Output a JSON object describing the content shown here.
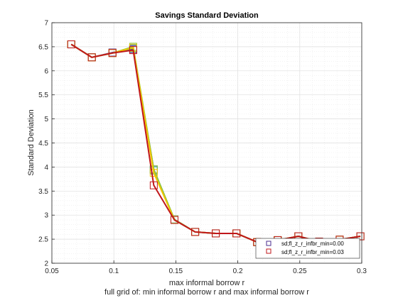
{
  "chart_data": {
    "type": "line",
    "title": "Savings Standard Deviation",
    "xlabel": "max informal borrow r",
    "ylabel": "Standard Deviation",
    "caption": "full grid of: min informal borrow r and max informal borrow r",
    "xlim": [
      0.05,
      0.3
    ],
    "ylim": [
      2,
      7
    ],
    "x_ticks": [
      0.05,
      0.1,
      0.15,
      0.2,
      0.25,
      0.3
    ],
    "x_tick_labels": [
      "0.05",
      "0.1",
      "0.15",
      "0.2",
      "0.25",
      "0.3"
    ],
    "y_ticks": [
      2,
      2.5,
      3,
      3.5,
      4,
      4.5,
      5,
      5.5,
      6,
      6.5,
      7
    ],
    "y_tick_labels": [
      "2",
      "2.5",
      "3",
      "3.5",
      "4",
      "4.5",
      "5",
      "5.5",
      "6",
      "6.5",
      "7"
    ],
    "grid": true,
    "legend_position": "bottom-right",
    "x": [
      0.0656,
      0.0822,
      0.0989,
      0.1156,
      0.1322,
      0.1489,
      0.1656,
      0.1822,
      0.1989,
      0.2156,
      0.2322,
      0.2489,
      0.2656,
      0.2822,
      0.2989
    ],
    "series": [
      {
        "name": "sd;fl_z_r_infbr_min=0.00",
        "color": "#4b2c8f",
        "values": [
          6.55,
          6.28,
          6.38,
          6.45,
          3.95,
          2.9,
          2.65,
          2.62,
          2.62,
          2.44,
          2.48,
          2.56,
          2.45,
          2.49,
          2.56
        ]
      },
      {
        "name": "",
        "color": "#2aa1a1",
        "values": [
          6.55,
          6.28,
          6.37,
          6.47,
          3.93,
          2.91,
          2.65,
          2.62,
          2.62,
          2.44,
          2.48,
          2.56,
          2.45,
          2.49,
          2.56
        ]
      },
      {
        "name": "",
        "color": "#8cc63e",
        "values": [
          6.55,
          6.28,
          6.37,
          6.5,
          3.95,
          2.91,
          2.65,
          2.62,
          2.62,
          2.44,
          2.48,
          2.56,
          2.45,
          2.49,
          2.56
        ]
      },
      {
        "name": "",
        "color": "#f2c500",
        "values": [
          6.55,
          6.28,
          6.37,
          6.48,
          3.88,
          2.9,
          2.65,
          2.62,
          2.62,
          2.44,
          2.48,
          2.56,
          2.45,
          2.49,
          2.56
        ]
      },
      {
        "name": "sd;fl_z_r_infbr_min=0.03",
        "color": "#c0171b",
        "values": [
          6.55,
          6.28,
          6.37,
          6.43,
          3.62,
          2.9,
          2.65,
          2.62,
          2.62,
          2.44,
          2.48,
          2.56,
          2.45,
          2.49,
          2.56
        ]
      }
    ],
    "legend_entries": [
      "sd;fl_z_r_infbr_min=0.00",
      "sd;fl_z_r_infbr_min=0.03"
    ]
  }
}
